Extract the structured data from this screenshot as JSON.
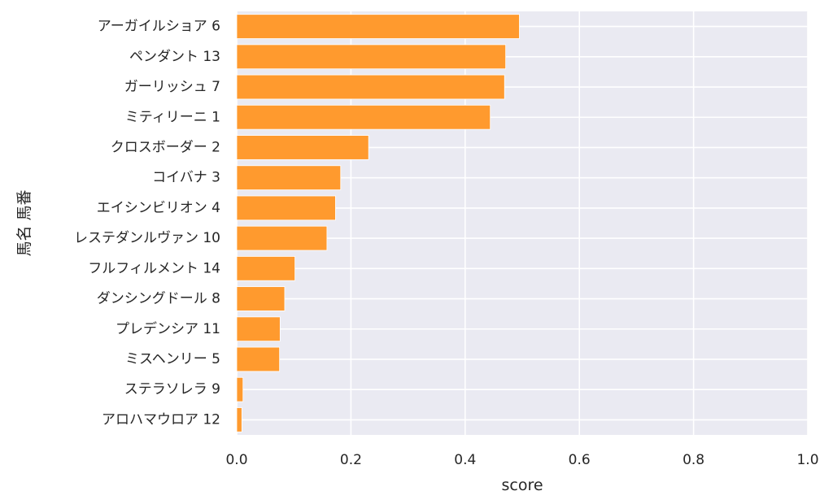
{
  "chart_data": {
    "type": "bar",
    "orientation": "horizontal",
    "categories": [
      "アーガイルショア 6",
      "ペンダント 13",
      "ガーリッシュ 7",
      "ミティリーニ 1",
      "クロスボーダー 2",
      "コイバナ 3",
      "エイシンビリオン 4",
      "レステダンルヴァン 10",
      "フルフィルメント 14",
      "ダンシングドール 8",
      "プレデンシア 11",
      "ミスヘンリー 5",
      "ステラソレラ 9",
      "アロハマウロア 12"
    ],
    "values": [
      0.495,
      0.471,
      0.469,
      0.444,
      0.231,
      0.182,
      0.173,
      0.158,
      0.102,
      0.084,
      0.076,
      0.075,
      0.011,
      0.009
    ],
    "xlabel": "score",
    "ylabel": "馬名 馬番",
    "xlim": [
      0,
      1.0
    ],
    "xticks": [
      "0.0",
      "0.2",
      "0.4",
      "0.6",
      "0.8",
      "1.0"
    ],
    "grid": true,
    "colors": {
      "bar": "#ff9a2e",
      "background": "#eaeaf2",
      "grid": "#ffffff",
      "text": "#262626"
    }
  }
}
